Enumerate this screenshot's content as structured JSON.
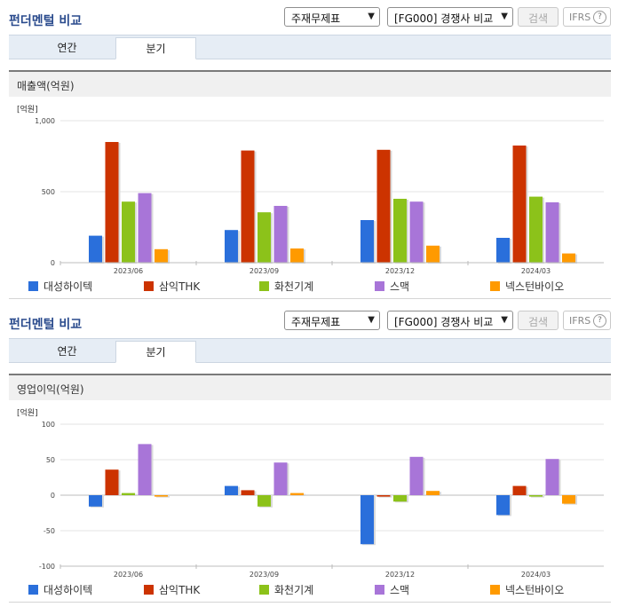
{
  "panels": [
    {
      "title": "펀더멘털 비교",
      "statement_select": "주재무제표",
      "peer_select": "[FG000] 경쟁사 비교",
      "search_label": "검색",
      "ifrs_label": "IFRS",
      "tabs": [
        "연간",
        "분기"
      ],
      "active_tab": 1,
      "metric_label": "매출액(억원)",
      "unit_label": "[억원]"
    },
    {
      "title": "펀더멘털 비교",
      "statement_select": "주재무제표",
      "peer_select": "[FG000] 경쟁사 비교",
      "search_label": "검색",
      "ifrs_label": "IFRS",
      "tabs": [
        "연간",
        "분기"
      ],
      "active_tab": 1,
      "metric_label": "영업이익(억원)",
      "unit_label": "[억원]"
    }
  ],
  "colors": {
    "대성하이텍": "#2a6fdb",
    "삼익THK": "#cc3300",
    "화천기계": "#8cc21a",
    "스맥": "#a875d8",
    "넥스턴바이오": "#ff9a00"
  },
  "chart_data": [
    {
      "type": "bar",
      "title": "매출액(억원)",
      "ylabel": "[억원]",
      "categories": [
        "2023/06",
        "2023/09",
        "2023/12",
        "2024/03"
      ],
      "ylim": [
        0,
        1000
      ],
      "yticks": [
        0,
        500,
        1000
      ],
      "ytick_labels": [
        "0",
        "500",
        "1,000"
      ],
      "series": [
        {
          "name": "대성하이텍",
          "values": [
            190,
            230,
            300,
            175
          ]
        },
        {
          "name": "삼익THK",
          "values": [
            850,
            790,
            795,
            825
          ]
        },
        {
          "name": "화천기계",
          "values": [
            430,
            355,
            450,
            465
          ]
        },
        {
          "name": "스맥",
          "values": [
            490,
            400,
            430,
            425
          ]
        },
        {
          "name": "넥스턴바이오",
          "values": [
            95,
            100,
            120,
            65
          ]
        }
      ]
    },
    {
      "type": "bar",
      "title": "영업이익(억원)",
      "ylabel": "[억원]",
      "categories": [
        "2023/06",
        "2023/09",
        "2023/12",
        "2024/03"
      ],
      "ylim": [
        -100,
        100
      ],
      "yticks": [
        -100,
        -50,
        0,
        50,
        100
      ],
      "ytick_labels": [
        "-100",
        "-50",
        "0",
        "50",
        "100"
      ],
      "series": [
        {
          "name": "대성하이텍",
          "values": [
            -16,
            13,
            -69,
            -28
          ]
        },
        {
          "name": "삼익THK",
          "values": [
            36,
            7,
            -2,
            13
          ]
        },
        {
          "name": "화천기계",
          "values": [
            3,
            -16,
            -9,
            -2
          ]
        },
        {
          "name": "스맥",
          "values": [
            72,
            46,
            54,
            51
          ]
        },
        {
          "name": "넥스턴바이오",
          "values": [
            -2,
            3,
            6,
            -12
          ]
        }
      ]
    }
  ]
}
